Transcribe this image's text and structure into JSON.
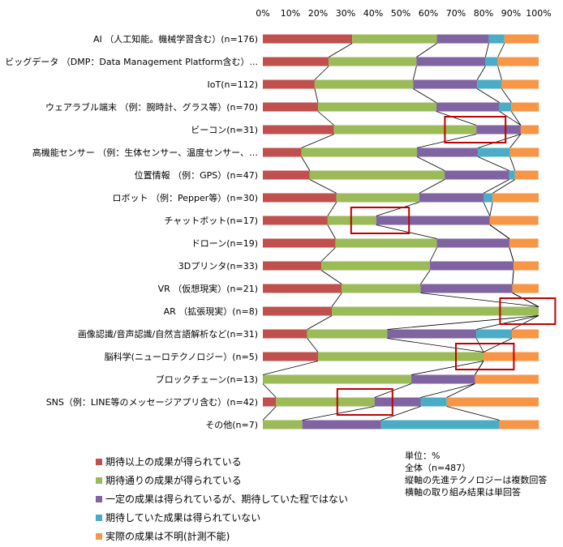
{
  "chart_data": {
    "type": "bar",
    "stacked": true,
    "orientation": "horizontal",
    "xlim": [
      0,
      100
    ],
    "xticks": [
      "0%",
      "10%",
      "20%",
      "30%",
      "40%",
      "50%",
      "60%",
      "70%",
      "80%",
      "90%",
      "100%"
    ],
    "categories": [
      "AI （人工知能。機械学習含む）(n=176)",
      "ビッグデータ （DMP：Data Management Platform含む）...",
      "IoT(n=112)",
      "ウェアラブル端末 （例：腕時計、グラス等）(n=70)",
      "ビーコン(n=31)",
      "高機能センサー （例：生体センサー、温度センサー、…",
      "位置情報 （例：GPS）(n=47)",
      "ロボット （例：Pepper等）(n=30)",
      "チャットボット(n=17)",
      "ドローン(n=19)",
      "3Dプリンタ(n=33)",
      "VR （仮想現実）(n=21)",
      "AR （拡張現実）(n=8)",
      "画像認識/音声認識/自然言語解析など(n=31)",
      "脳科学(ニューロテクノロジー）(n=5)",
      "ブロックチェーン(n=13)",
      "SNS（例：LINE等のメッセージアプリ含む）(n=42)",
      "その他(n=7)"
    ],
    "series": [
      {
        "name": "期待以上の成果が得られている",
        "color": "#c0504d",
        "values": [
          32.4,
          23.9,
          18.8,
          20.0,
          25.8,
          14.0,
          17.0,
          26.7,
          23.5,
          26.3,
          21.2,
          28.6,
          25.0,
          16.1,
          20.0,
          0.0,
          4.8,
          0.0
        ]
      },
      {
        "name": "期待通りの成果が得られている",
        "color": "#9bbb59",
        "values": [
          30.7,
          31.8,
          35.7,
          42.9,
          51.6,
          41.9,
          48.9,
          30.0,
          17.6,
          36.8,
          39.4,
          28.6,
          75.0,
          29.0,
          60.0,
          53.8,
          35.7,
          14.3
        ]
      },
      {
        "name": "一定の成果は得られているが、期待していた程ではない",
        "color": "#8064a2",
        "values": [
          18.8,
          25.0,
          23.2,
          22.9,
          16.1,
          22.1,
          23.4,
          23.3,
          41.2,
          26.3,
          30.3,
          33.3,
          0.0,
          32.3,
          0.0,
          23.1,
          16.7,
          28.6
        ]
      },
      {
        "name": "期待していた成果は得られていない",
        "color": "#4bacc6",
        "values": [
          5.7,
          4.5,
          8.9,
          4.3,
          0.0,
          11.6,
          2.1,
          3.3,
          0.0,
          0.0,
          0.0,
          0.0,
          0.0,
          12.9,
          0.0,
          0.0,
          9.5,
          42.9
        ]
      },
      {
        "name": "実際の成果は不明(計測不能)",
        "color": "#f79646",
        "values": [
          12.4,
          14.8,
          13.4,
          10.0,
          6.5,
          10.5,
          8.5,
          16.7,
          17.6,
          10.5,
          9.1,
          9.5,
          0.0,
          9.7,
          20.0,
          23.1,
          33.3,
          14.3
        ]
      }
    ],
    "highlight_boxes": [
      {
        "row": 4,
        "from": 66,
        "to": 88
      },
      {
        "row": 8,
        "from": 32,
        "to": 53
      },
      {
        "row": 12,
        "from": 86,
        "to": 106
      },
      {
        "row": 14,
        "from": 70,
        "to": 91
      },
      {
        "row": 16,
        "from": 27,
        "to": 47
      }
    ],
    "highlight_color": "#c00000",
    "legend_position": "bottom-left",
    "grid": false
  },
  "notes": [
    "単位：%",
    "全体（n=487）",
    "縦軸の先進テクノロジーは複数回答",
    "横軸の取り組み結果は単回答"
  ]
}
